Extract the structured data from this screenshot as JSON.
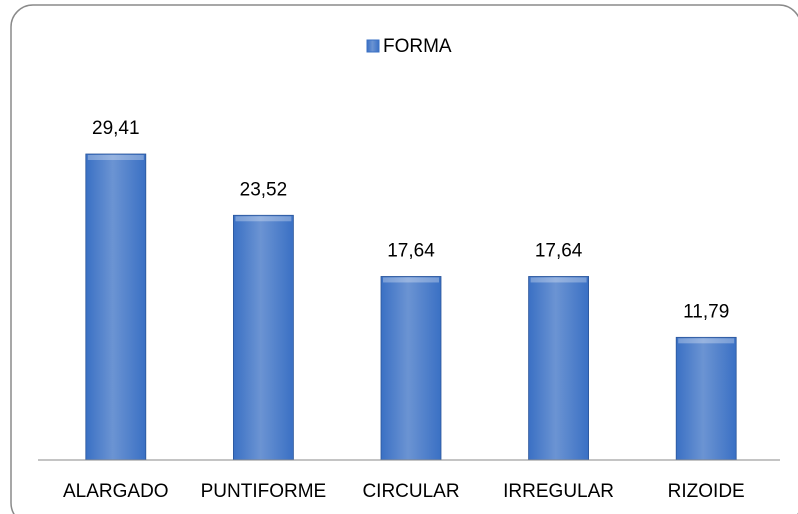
{
  "chart_data": {
    "type": "bar",
    "categories": [
      "ALARGADO",
      "PUNTIFORME",
      "CIRCULAR",
      "IRREGULAR",
      "RIZOIDE"
    ],
    "series": [
      {
        "name": "FORMA",
        "color": "#3a70c4",
        "values": [
          29.41,
          23.52,
          17.64,
          17.64,
          11.79
        ],
        "value_labels": [
          "29,41",
          "23,52",
          "17,64",
          "17,64",
          "11,79"
        ]
      }
    ],
    "legend": "top"
  }
}
